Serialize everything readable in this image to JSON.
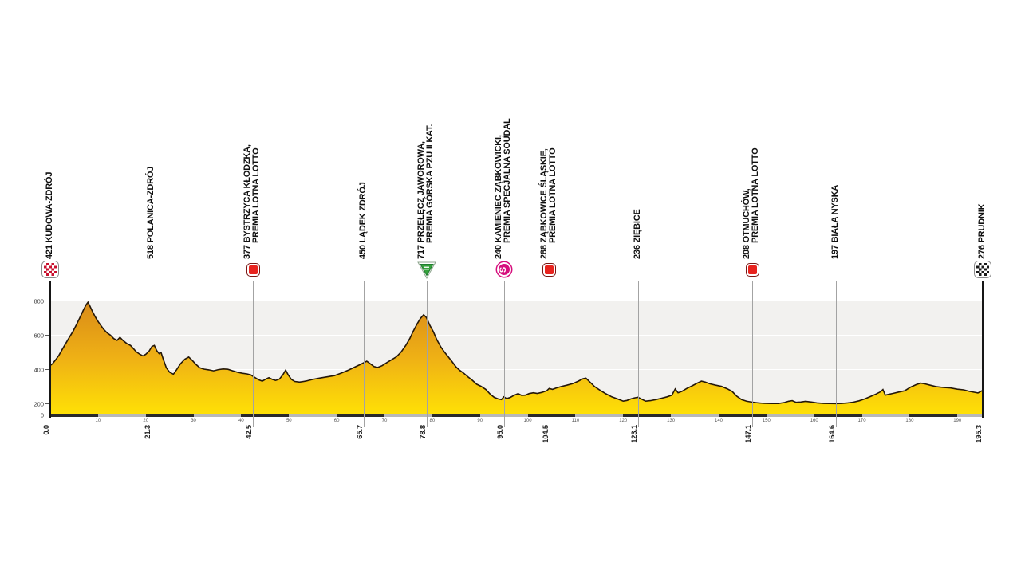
{
  "chart_data": {
    "type": "area",
    "title": "",
    "x_unit": "km",
    "y_unit": "m",
    "x_range": [
      0,
      195.3
    ],
    "y_ticks": [
      0,
      200,
      400,
      600,
      800
    ],
    "grid": "horizontal-white-on-gray",
    "minor_km_ticks": [
      10,
      20,
      30,
      40,
      50,
      60,
      70,
      80,
      90,
      100,
      110,
      120,
      130,
      140,
      150,
      160,
      170,
      180,
      190
    ],
    "waypoints": [
      {
        "km": 0.0,
        "km_label": "0.0",
        "elevation": 421,
        "line1": "421 KUDOWA-ZDRÓJ",
        "line2": "",
        "marker": "start-flag"
      },
      {
        "km": 21.3,
        "km_label": "21.3",
        "elevation": 518,
        "line1": "518 POLANICA-ZDRÓJ",
        "line2": "",
        "marker": "none"
      },
      {
        "km": 42.5,
        "km_label": "42.5",
        "elevation": 377,
        "line1": "377 BYSTRZYCA KŁODZKA,",
        "line2": "PREMIA LOTNA LOTTO",
        "marker": "sprint"
      },
      {
        "km": 65.7,
        "km_label": "65.7",
        "elevation": 450,
        "line1": "450 LĄDEK ZDRÓJ",
        "line2": "",
        "marker": "none"
      },
      {
        "km": 78.8,
        "km_label": "78.8",
        "elevation": 717,
        "line1": "717 PRZEŁĘCZ JAWOROWA,",
        "line2": "PREMIA GÓRSKA PZU II KAT.",
        "marker": "kom",
        "marker_text": "II"
      },
      {
        "km": 95.0,
        "km_label": "95.0",
        "elevation": 240,
        "line1": "240 KAMIENIEC ZĄBKOWICKI,",
        "line2": "PREMIA SPECJALNA SOUDAL",
        "marker": "special",
        "marker_text": "S"
      },
      {
        "km": 104.5,
        "km_label": "104.5",
        "elevation": 288,
        "line1": "288 ZĄBKOWICE ŚLĄSKIE,",
        "line2": "PREMIA LOTNA LOTTO",
        "marker": "sprint"
      },
      {
        "km": 123.1,
        "km_label": "123.1",
        "elevation": 236,
        "line1": "236 ZIĘBICE",
        "line2": "",
        "marker": "none"
      },
      {
        "km": 147.1,
        "km_label": "147.1",
        "elevation": 208,
        "line1": "208 OTMUCHÓW,",
        "line2": "PREMIA LOTNA LOTTO",
        "marker": "sprint"
      },
      {
        "km": 164.6,
        "km_label": "164.6",
        "elevation": 197,
        "line1": "197 BIAŁA NYSKA",
        "line2": "",
        "marker": "none"
      },
      {
        "km": 195.3,
        "km_label": "195.3",
        "elevation": 276,
        "line1": "276 PRUDNIK",
        "line2": "",
        "marker": "finish-flag"
      }
    ],
    "profile": [
      [
        0,
        421
      ],
      [
        0.5,
        432
      ],
      [
        1,
        450
      ],
      [
        1.8,
        480
      ],
      [
        2.5,
        515
      ],
      [
        3.2,
        548
      ],
      [
        4,
        585
      ],
      [
        4.8,
        622
      ],
      [
        5.5,
        660
      ],
      [
        6.2,
        700
      ],
      [
        6.9,
        742
      ],
      [
        7.5,
        775
      ],
      [
        7.9,
        790
      ],
      [
        8.3,
        768
      ],
      [
        8.8,
        738
      ],
      [
        9.4,
        706
      ],
      [
        10,
        678
      ],
      [
        10.6,
        655
      ],
      [
        11.2,
        632
      ],
      [
        11.9,
        612
      ],
      [
        12.6,
        598
      ],
      [
        13.3,
        578
      ],
      [
        14,
        568
      ],
      [
        14.6,
        585
      ],
      [
        15.2,
        568
      ],
      [
        16,
        550
      ],
      [
        16.8,
        538
      ],
      [
        17.4,
        520
      ],
      [
        18,
        502
      ],
      [
        18.7,
        488
      ],
      [
        19.4,
        477
      ],
      [
        20,
        486
      ],
      [
        20.7,
        505
      ],
      [
        21.3,
        532
      ],
      [
        21.8,
        538
      ],
      [
        22.3,
        508
      ],
      [
        22.8,
        490
      ],
      [
        23.2,
        497
      ],
      [
        23.7,
        455
      ],
      [
        24.3,
        408
      ],
      [
        25,
        382
      ],
      [
        25.8,
        370
      ],
      [
        26.5,
        398
      ],
      [
        27.3,
        432
      ],
      [
        28.2,
        458
      ],
      [
        29,
        470
      ],
      [
        29.7,
        452
      ],
      [
        30.5,
        428
      ],
      [
        31.3,
        408
      ],
      [
        32.2,
        400
      ],
      [
        33.2,
        396
      ],
      [
        34.2,
        390
      ],
      [
        35.2,
        397
      ],
      [
        36.2,
        401
      ],
      [
        37.2,
        399
      ],
      [
        38.2,
        390
      ],
      [
        39.2,
        382
      ],
      [
        40.2,
        376
      ],
      [
        41.2,
        372
      ],
      [
        42,
        366
      ],
      [
        42.8,
        352
      ],
      [
        43.6,
        338
      ],
      [
        44.4,
        330
      ],
      [
        45.2,
        343
      ],
      [
        45.8,
        350
      ],
      [
        46.5,
        340
      ],
      [
        47.2,
        334
      ],
      [
        48,
        342
      ],
      [
        48.7,
        366
      ],
      [
        49.3,
        394
      ],
      [
        49.8,
        368
      ],
      [
        50.5,
        340
      ],
      [
        51.2,
        328
      ],
      [
        52.2,
        324
      ],
      [
        53.5,
        330
      ],
      [
        55,
        340
      ],
      [
        56.5,
        348
      ],
      [
        58,
        355
      ],
      [
        59.5,
        362
      ],
      [
        61,
        377
      ],
      [
        62.5,
        395
      ],
      [
        63.8,
        412
      ],
      [
        65,
        428
      ],
      [
        65.7,
        438
      ],
      [
        66.3,
        446
      ],
      [
        67,
        432
      ],
      [
        67.8,
        415
      ],
      [
        68.6,
        410
      ],
      [
        69.5,
        420
      ],
      [
        70.5,
        438
      ],
      [
        71.5,
        455
      ],
      [
        72.5,
        472
      ],
      [
        73.5,
        500
      ],
      [
        74.5,
        540
      ],
      [
        75.3,
        578
      ],
      [
        76,
        620
      ],
      [
        76.8,
        662
      ],
      [
        77.5,
        695
      ],
      [
        78.2,
        717
      ],
      [
        78.8,
        700
      ],
      [
        79.5,
        655
      ],
      [
        80.2,
        620
      ],
      [
        81,
        570
      ],
      [
        81.8,
        530
      ],
      [
        82.6,
        498
      ],
      [
        83.4,
        470
      ],
      [
        84.2,
        442
      ],
      [
        85,
        412
      ],
      [
        85.8,
        392
      ],
      [
        86.6,
        376
      ],
      [
        87.5,
        355
      ],
      [
        88.4,
        335
      ],
      [
        89.3,
        312
      ],
      [
        90.2,
        300
      ],
      [
        91.2,
        282
      ],
      [
        92.2,
        252
      ],
      [
        93,
        235
      ],
      [
        93.8,
        226
      ],
      [
        94.5,
        222
      ],
      [
        95,
        238
      ],
      [
        95.6,
        228
      ],
      [
        96.3,
        234
      ],
      [
        97.2,
        248
      ],
      [
        98,
        257
      ],
      [
        98.7,
        247
      ],
      [
        99.5,
        248
      ],
      [
        100.3,
        257
      ],
      [
        101.2,
        262
      ],
      [
        102,
        258
      ],
      [
        103,
        264
      ],
      [
        104,
        274
      ],
      [
        104.5,
        287
      ],
      [
        105.2,
        282
      ],
      [
        106,
        290
      ],
      [
        107,
        298
      ],
      [
        108.2,
        306
      ],
      [
        109.4,
        315
      ],
      [
        110.6,
        330
      ],
      [
        111.6,
        344
      ],
      [
        112.2,
        347
      ],
      [
        113,
        325
      ],
      [
        114,
        298
      ],
      [
        115.2,
        276
      ],
      [
        116.4,
        256
      ],
      [
        117.6,
        238
      ],
      [
        118.8,
        226
      ],
      [
        120,
        213
      ],
      [
        120.8,
        217
      ],
      [
        121.6,
        226
      ],
      [
        122.4,
        232
      ],
      [
        123.1,
        236
      ],
      [
        123.9,
        224
      ],
      [
        124.7,
        213
      ],
      [
        125.7,
        216
      ],
      [
        126.8,
        222
      ],
      [
        128,
        230
      ],
      [
        129.2,
        238
      ],
      [
        130.2,
        248
      ],
      [
        130.9,
        284
      ],
      [
        131.5,
        262
      ],
      [
        132.3,
        270
      ],
      [
        133.3,
        287
      ],
      [
        134.4,
        302
      ],
      [
        135.5,
        318
      ],
      [
        136.4,
        330
      ],
      [
        137.2,
        324
      ],
      [
        138.2,
        314
      ],
      [
        139.4,
        306
      ],
      [
        140.6,
        299
      ],
      [
        141.8,
        285
      ],
      [
        142.8,
        270
      ],
      [
        143.8,
        242
      ],
      [
        144.8,
        222
      ],
      [
        145.9,
        212
      ],
      [
        147.1,
        207
      ],
      [
        148.3,
        203
      ],
      [
        149.5,
        200
      ],
      [
        151,
        198
      ],
      [
        152.5,
        197
      ],
      [
        153.8,
        205
      ],
      [
        154.6,
        212
      ],
      [
        155.4,
        216
      ],
      [
        156.2,
        206
      ],
      [
        157.2,
        208
      ],
      [
        158.2,
        212
      ],
      [
        159.4,
        208
      ],
      [
        160.6,
        203
      ],
      [
        162,
        199
      ],
      [
        163.3,
        197
      ],
      [
        164.6,
        196
      ],
      [
        165.8,
        199
      ],
      [
        167,
        203
      ],
      [
        168.2,
        207
      ],
      [
        169.4,
        215
      ],
      [
        170.6,
        226
      ],
      [
        171.8,
        240
      ],
      [
        173,
        255
      ],
      [
        173.9,
        268
      ],
      [
        174.4,
        281
      ],
      [
        174.9,
        248
      ],
      [
        175.5,
        252
      ],
      [
        176.5,
        258
      ],
      [
        177.7,
        266
      ],
      [
        179,
        274
      ],
      [
        180.2,
        295
      ],
      [
        181.4,
        310
      ],
      [
        182.3,
        318
      ],
      [
        183.2,
        314
      ],
      [
        184.3,
        306
      ],
      [
        185.5,
        298
      ],
      [
        187,
        293
      ],
      [
        188.5,
        290
      ],
      [
        190,
        283
      ],
      [
        191.3,
        279
      ],
      [
        192.5,
        270
      ],
      [
        193.5,
        265
      ],
      [
        194.3,
        261
      ],
      [
        195.3,
        276
      ]
    ],
    "legend_position": "none"
  },
  "colors": {
    "profile_gradient_top": "#d98a18",
    "profile_gradient_mid": "#efb115",
    "profile_gradient_bottom": "#ffe205",
    "profile_stroke": "#241709",
    "plot_background": "#f2f1ef",
    "waypoint_line": "#a3a3a3",
    "axis_line": "#161616",
    "scalebar_dark": "#2a2a2a",
    "scalebar_light": "#b8b8b8",
    "sprint_red": "#e8231e",
    "sprint_border": "#7a1815",
    "kom_green": "#36a23c",
    "kom_green_dark": "#1f7c30",
    "special_magenta": "#d60f7d",
    "start_checker_red": "#c8102e",
    "finish_checker_black": "#1a1a1a"
  }
}
